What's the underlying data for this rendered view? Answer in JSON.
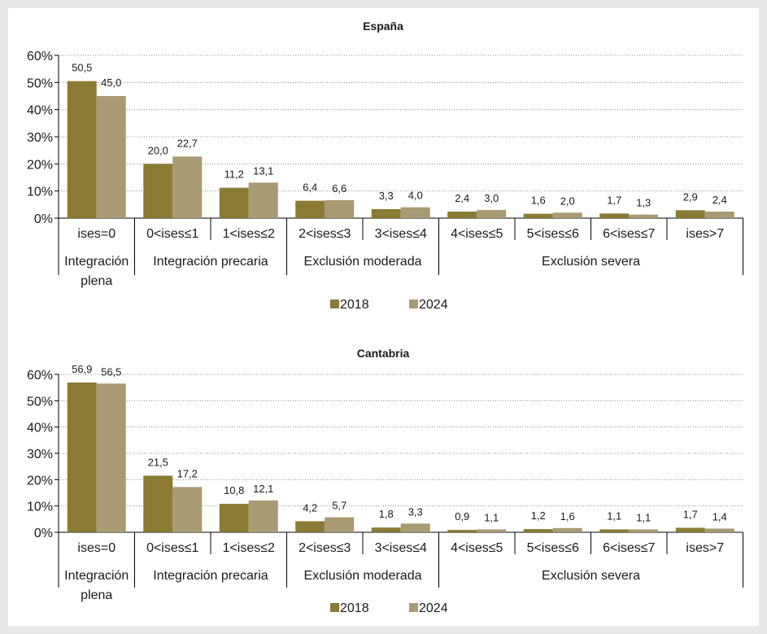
{
  "colors": {
    "series_2018": "#8a7a34",
    "series_2024": "#a89a72",
    "grid": "#8c8c8c",
    "axis": "#000000",
    "text": "#1a1a1a"
  },
  "chart_data": [
    {
      "type": "bar",
      "title": "España",
      "categories": [
        "ises=0",
        "0<ises≤1",
        "1<ises≤2",
        "2<ises≤3",
        "3<ises≤4",
        "4<ises≤5",
        "5<ises≤6",
        "6<ises≤7",
        "ises>7"
      ],
      "groups": [
        {
          "label_lines": [
            "Integración",
            "plena"
          ],
          "from": 0,
          "to": 0
        },
        {
          "label_lines": [
            "Integración precaria"
          ],
          "from": 1,
          "to": 2
        },
        {
          "label_lines": [
            "Exclusión moderada"
          ],
          "from": 3,
          "to": 4
        },
        {
          "label_lines": [
            "Exclusión severa"
          ],
          "from": 5,
          "to": 8
        }
      ],
      "series": [
        {
          "name": "2018",
          "values": [
            50.5,
            20.0,
            11.2,
            6.4,
            3.3,
            2.4,
            1.6,
            1.7,
            2.9
          ],
          "labels": [
            "50,5",
            "20,0",
            "11,2",
            "6,4",
            "3,3",
            "2,4",
            "1,6",
            "1,7",
            "2,9"
          ]
        },
        {
          "name": "2024",
          "values": [
            45.0,
            22.7,
            13.1,
            6.6,
            4.0,
            3.0,
            2.0,
            1.3,
            2.4
          ],
          "labels": [
            "45,0",
            "22,7",
            "13,1",
            "6,6",
            "4,0",
            "3,0",
            "2,0",
            "1,3",
            "2,4"
          ]
        }
      ],
      "yticks": [
        "0%",
        "10%",
        "20%",
        "30%",
        "40%",
        "50%",
        "60%"
      ],
      "ylim": [
        0,
        60
      ],
      "grid": true,
      "legend": "bottom-center"
    },
    {
      "type": "bar",
      "title": "Cantabria",
      "categories": [
        "ises=0",
        "0<ises≤1",
        "1<ises≤2",
        "2<ises≤3",
        "3<ises≤4",
        "4<ises≤5",
        "5<ises≤6",
        "6<ises≤7",
        "ises>7"
      ],
      "groups": [
        {
          "label_lines": [
            "Integración",
            "plena"
          ],
          "from": 0,
          "to": 0
        },
        {
          "label_lines": [
            "Integración precaria"
          ],
          "from": 1,
          "to": 2
        },
        {
          "label_lines": [
            "Exclusión moderada"
          ],
          "from": 3,
          "to": 4
        },
        {
          "label_lines": [
            "Exclusión severa"
          ],
          "from": 5,
          "to": 8
        }
      ],
      "series": [
        {
          "name": "2018",
          "values": [
            56.9,
            21.5,
            10.8,
            4.2,
            1.8,
            0.9,
            1.2,
            1.1,
            1.7
          ],
          "labels": [
            "56,9",
            "21,5",
            "10,8",
            "4,2",
            "1,8",
            "0,9",
            "1,2",
            "1,1",
            "1,7"
          ]
        },
        {
          "name": "2024",
          "values": [
            56.5,
            17.2,
            12.1,
            5.7,
            3.3,
            1.1,
            1.6,
            1.1,
            1.4
          ],
          "labels": [
            "56,5",
            "17,2",
            "12,1",
            "5,7",
            "3,3",
            "1,1",
            "1,6",
            "1,1",
            "1,4"
          ]
        }
      ],
      "yticks": [
        "0%",
        "10%",
        "20%",
        "30%",
        "40%",
        "50%",
        "60%"
      ],
      "ylim": [
        0,
        60
      ],
      "grid": true,
      "legend": "bottom-center"
    }
  ]
}
